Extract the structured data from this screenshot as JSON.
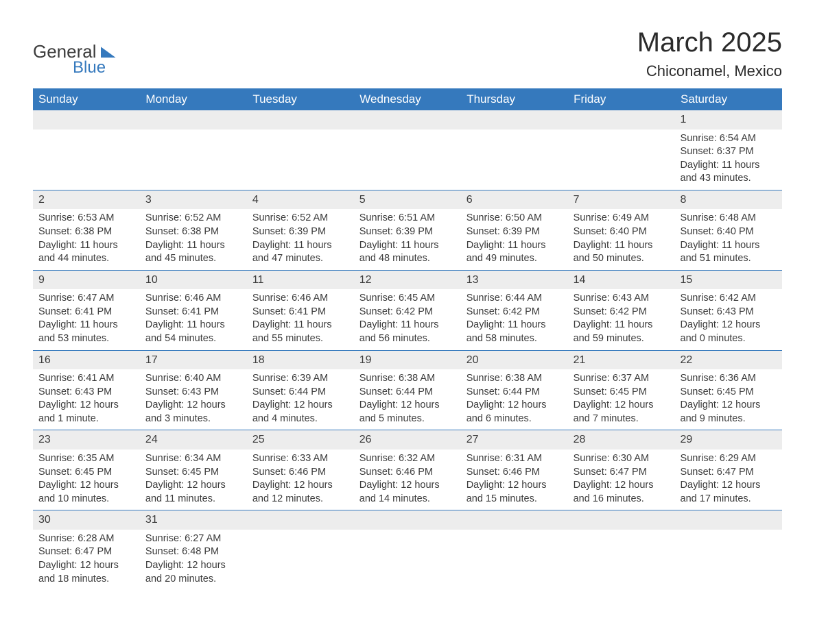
{
  "logo": {
    "text1": "General",
    "text2": "Blue"
  },
  "title": "March 2025",
  "location": "Chiconamel, Mexico",
  "colors": {
    "header_bg": "#3579bd",
    "header_text": "#ffffff",
    "daynum_bg": "#ededed",
    "border": "#3579bd",
    "body_text": "#3c3c3c",
    "page_bg": "#ffffff",
    "logo_accent": "#3579bd"
  },
  "typography": {
    "title_fontsize": 40,
    "location_fontsize": 22,
    "dayhead_fontsize": 17,
    "cell_fontsize": 14.5
  },
  "day_headers": [
    "Sunday",
    "Monday",
    "Tuesday",
    "Wednesday",
    "Thursday",
    "Friday",
    "Saturday"
  ],
  "weeks": [
    [
      null,
      null,
      null,
      null,
      null,
      null,
      {
        "n": "1",
        "sr": "6:54 AM",
        "ss": "6:37 PM",
        "dl": "11 hours and 43 minutes."
      }
    ],
    [
      {
        "n": "2",
        "sr": "6:53 AM",
        "ss": "6:38 PM",
        "dl": "11 hours and 44 minutes."
      },
      {
        "n": "3",
        "sr": "6:52 AM",
        "ss": "6:38 PM",
        "dl": "11 hours and 45 minutes."
      },
      {
        "n": "4",
        "sr": "6:52 AM",
        "ss": "6:39 PM",
        "dl": "11 hours and 47 minutes."
      },
      {
        "n": "5",
        "sr": "6:51 AM",
        "ss": "6:39 PM",
        "dl": "11 hours and 48 minutes."
      },
      {
        "n": "6",
        "sr": "6:50 AM",
        "ss": "6:39 PM",
        "dl": "11 hours and 49 minutes."
      },
      {
        "n": "7",
        "sr": "6:49 AM",
        "ss": "6:40 PM",
        "dl": "11 hours and 50 minutes."
      },
      {
        "n": "8",
        "sr": "6:48 AM",
        "ss": "6:40 PM",
        "dl": "11 hours and 51 minutes."
      }
    ],
    [
      {
        "n": "9",
        "sr": "6:47 AM",
        "ss": "6:41 PM",
        "dl": "11 hours and 53 minutes."
      },
      {
        "n": "10",
        "sr": "6:46 AM",
        "ss": "6:41 PM",
        "dl": "11 hours and 54 minutes."
      },
      {
        "n": "11",
        "sr": "6:46 AM",
        "ss": "6:41 PM",
        "dl": "11 hours and 55 minutes."
      },
      {
        "n": "12",
        "sr": "6:45 AM",
        "ss": "6:42 PM",
        "dl": "11 hours and 56 minutes."
      },
      {
        "n": "13",
        "sr": "6:44 AM",
        "ss": "6:42 PM",
        "dl": "11 hours and 58 minutes."
      },
      {
        "n": "14",
        "sr": "6:43 AM",
        "ss": "6:42 PM",
        "dl": "11 hours and 59 minutes."
      },
      {
        "n": "15",
        "sr": "6:42 AM",
        "ss": "6:43 PM",
        "dl": "12 hours and 0 minutes."
      }
    ],
    [
      {
        "n": "16",
        "sr": "6:41 AM",
        "ss": "6:43 PM",
        "dl": "12 hours and 1 minute."
      },
      {
        "n": "17",
        "sr": "6:40 AM",
        "ss": "6:43 PM",
        "dl": "12 hours and 3 minutes."
      },
      {
        "n": "18",
        "sr": "6:39 AM",
        "ss": "6:44 PM",
        "dl": "12 hours and 4 minutes."
      },
      {
        "n": "19",
        "sr": "6:38 AM",
        "ss": "6:44 PM",
        "dl": "12 hours and 5 minutes."
      },
      {
        "n": "20",
        "sr": "6:38 AM",
        "ss": "6:44 PM",
        "dl": "12 hours and 6 minutes."
      },
      {
        "n": "21",
        "sr": "6:37 AM",
        "ss": "6:45 PM",
        "dl": "12 hours and 7 minutes."
      },
      {
        "n": "22",
        "sr": "6:36 AM",
        "ss": "6:45 PM",
        "dl": "12 hours and 9 minutes."
      }
    ],
    [
      {
        "n": "23",
        "sr": "6:35 AM",
        "ss": "6:45 PM",
        "dl": "12 hours and 10 minutes."
      },
      {
        "n": "24",
        "sr": "6:34 AM",
        "ss": "6:45 PM",
        "dl": "12 hours and 11 minutes."
      },
      {
        "n": "25",
        "sr": "6:33 AM",
        "ss": "6:46 PM",
        "dl": "12 hours and 12 minutes."
      },
      {
        "n": "26",
        "sr": "6:32 AM",
        "ss": "6:46 PM",
        "dl": "12 hours and 14 minutes."
      },
      {
        "n": "27",
        "sr": "6:31 AM",
        "ss": "6:46 PM",
        "dl": "12 hours and 15 minutes."
      },
      {
        "n": "28",
        "sr": "6:30 AM",
        "ss": "6:47 PM",
        "dl": "12 hours and 16 minutes."
      },
      {
        "n": "29",
        "sr": "6:29 AM",
        "ss": "6:47 PM",
        "dl": "12 hours and 17 minutes."
      }
    ],
    [
      {
        "n": "30",
        "sr": "6:28 AM",
        "ss": "6:47 PM",
        "dl": "12 hours and 18 minutes."
      },
      {
        "n": "31",
        "sr": "6:27 AM",
        "ss": "6:48 PM",
        "dl": "12 hours and 20 minutes."
      },
      null,
      null,
      null,
      null,
      null
    ]
  ],
  "labels": {
    "sunrise": "Sunrise: ",
    "sunset": "Sunset: ",
    "daylight": "Daylight: "
  }
}
